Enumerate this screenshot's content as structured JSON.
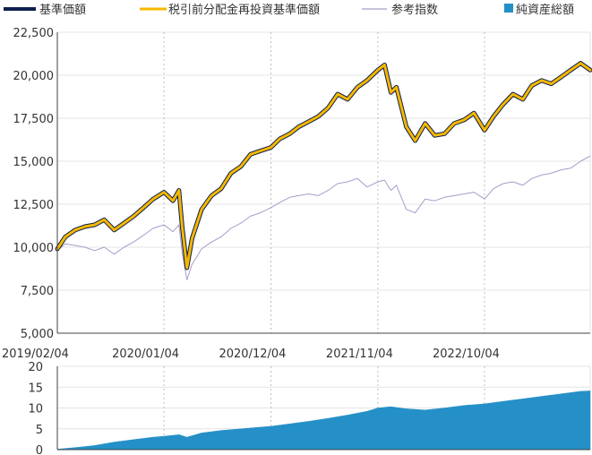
{
  "legend": {
    "items": [
      {
        "label": "基準価額",
        "color": "#0d1f4e",
        "swatch": "line"
      },
      {
        "label": "税引前分配金再投資基準価額",
        "color": "#f5b800",
        "swatch": "line"
      },
      {
        "label": "参考指数",
        "color": "#a89cc8",
        "swatch": "line"
      },
      {
        "label": "純資産総額",
        "color": "#2590c8",
        "swatch": "square"
      }
    ]
  },
  "chart_data": [
    {
      "type": "line",
      "x_ticks": [
        "2019/02/04",
        "2020/01/04",
        "2020/12/04",
        "2021/11/04",
        "2022/10/04"
      ],
      "x_range": [
        "2019/02/04",
        "2023/08/31"
      ],
      "ylim": [
        5000,
        22500
      ],
      "y_ticks": [
        "5,000",
        "7,500",
        "10,000",
        "12,500",
        "15,000",
        "17,500",
        "20,000",
        "22,500"
      ],
      "grid": "vertical-dotted",
      "series": [
        {
          "name": "税引前分配金再投資基準価額",
          "color": "#f5b800",
          "x": [
            "2019/02/04",
            "2019/03/01",
            "2019/04/01",
            "2019/05/01",
            "2019/06/01",
            "2019/07/01",
            "2019/08/01",
            "2019/09/01",
            "2019/10/01",
            "2019/11/01",
            "2019/12/01",
            "2020/01/04",
            "2020/02/01",
            "2020/02/20",
            "2020/03/01",
            "2020/03/16",
            "2020/04/01",
            "2020/05/01",
            "2020/06/01",
            "2020/07/01",
            "2020/08/01",
            "2020/09/01",
            "2020/10/01",
            "2020/11/01",
            "2020/12/04",
            "2021/01/01",
            "2021/02/01",
            "2021/03/01",
            "2021/04/01",
            "2021/05/01",
            "2021/06/01",
            "2021/07/01",
            "2021/08/01",
            "2021/09/01",
            "2021/10/01",
            "2021/11/04",
            "2021/11/25",
            "2021/12/15",
            "2022/01/01",
            "2022/02/01",
            "2022/03/01",
            "2022/04/01",
            "2022/05/01",
            "2022/06/01",
            "2022/07/01",
            "2022/08/01",
            "2022/09/01",
            "2022/10/04",
            "2022/11/01",
            "2022/12/01",
            "2023/01/01",
            "2023/02/01",
            "2023/03/01",
            "2023/04/01",
            "2023/05/01",
            "2023/06/01",
            "2023/07/01",
            "2023/08/01",
            "2023/08/31"
          ],
          "values": [
            9900,
            10600,
            11000,
            11200,
            11300,
            11600,
            11000,
            11400,
            11800,
            12300,
            12800,
            13200,
            12700,
            13300,
            11200,
            8800,
            10500,
            12200,
            13000,
            13400,
            14300,
            14700,
            15400,
            15600,
            15800,
            16300,
            16600,
            17000,
            17300,
            17600,
            18100,
            18900,
            18600,
            19300,
            19700,
            20300,
            20600,
            19000,
            19300,
            17000,
            16200,
            17200,
            16500,
            16600,
            17200,
            17400,
            17800,
            16800,
            17600,
            18300,
            18900,
            18600,
            19400,
            19700,
            19500,
            19900,
            20300,
            20700,
            20300
          ]
        },
        {
          "name": "基準価額",
          "color": "#0d1f4e",
          "x": [
            "2019/02/04",
            "2019/03/01",
            "2019/04/01",
            "2019/05/01",
            "2019/06/01",
            "2019/07/01",
            "2019/08/01",
            "2019/09/01",
            "2019/10/01",
            "2019/11/01",
            "2019/12/01",
            "2020/01/04",
            "2020/02/01",
            "2020/02/20",
            "2020/03/01",
            "2020/03/16",
            "2020/04/01",
            "2020/05/01",
            "2020/06/01",
            "2020/07/01",
            "2020/08/01",
            "2020/09/01",
            "2020/10/01",
            "2020/11/01",
            "2020/12/04",
            "2021/01/01",
            "2021/02/01",
            "2021/03/01",
            "2021/04/01",
            "2021/05/01",
            "2021/06/01",
            "2021/07/01",
            "2021/08/01",
            "2021/09/01",
            "2021/10/01",
            "2021/11/04",
            "2021/11/25",
            "2021/12/15",
            "2022/01/01",
            "2022/02/01",
            "2022/03/01",
            "2022/04/01",
            "2022/05/01",
            "2022/06/01",
            "2022/07/01",
            "2022/08/01",
            "2022/09/01",
            "2022/10/04",
            "2022/11/01",
            "2022/12/01",
            "2023/01/01",
            "2023/02/01",
            "2023/03/01",
            "2023/04/01",
            "2023/05/01",
            "2023/06/01",
            "2023/07/01",
            "2023/08/01",
            "2023/08/31"
          ],
          "values": [
            9900,
            10600,
            11000,
            11200,
            11300,
            11600,
            11000,
            11400,
            11800,
            12300,
            12800,
            13200,
            12700,
            13300,
            11200,
            8800,
            10500,
            12200,
            13000,
            13400,
            14300,
            14700,
            15400,
            15600,
            15800,
            16300,
            16600,
            17000,
            17300,
            17600,
            18100,
            18900,
            18600,
            19300,
            19700,
            20300,
            20600,
            19000,
            19300,
            17000,
            16200,
            17200,
            16500,
            16600,
            17200,
            17400,
            17800,
            16800,
            17600,
            18300,
            18900,
            18600,
            19400,
            19700,
            19500,
            19900,
            20300,
            20700,
            20300
          ]
        },
        {
          "name": "参考指数",
          "color": "#a89cc8",
          "x": [
            "2019/02/04",
            "2019/03/01",
            "2019/04/01",
            "2019/05/01",
            "2019/06/01",
            "2019/07/01",
            "2019/08/01",
            "2019/09/01",
            "2019/10/01",
            "2019/11/01",
            "2019/12/01",
            "2020/01/04",
            "2020/02/01",
            "2020/02/20",
            "2020/03/01",
            "2020/03/16",
            "2020/04/01",
            "2020/05/01",
            "2020/06/01",
            "2020/07/01",
            "2020/08/01",
            "2020/09/01",
            "2020/10/01",
            "2020/11/01",
            "2020/12/04",
            "2021/01/01",
            "2021/02/01",
            "2021/03/01",
            "2021/04/01",
            "2021/05/01",
            "2021/06/01",
            "2021/07/01",
            "2021/08/01",
            "2021/09/01",
            "2021/10/01",
            "2021/11/04",
            "2021/11/25",
            "2021/12/15",
            "2022/01/01",
            "2022/02/01",
            "2022/03/01",
            "2022/04/01",
            "2022/05/01",
            "2022/06/01",
            "2022/07/01",
            "2022/08/01",
            "2022/09/01",
            "2022/10/04",
            "2022/11/01",
            "2022/12/01",
            "2023/01/01",
            "2023/02/01",
            "2023/03/01",
            "2023/04/01",
            "2023/05/01",
            "2023/06/01",
            "2023/07/01",
            "2023/08/01",
            "2023/08/31"
          ],
          "values": [
            9800,
            10200,
            10100,
            10000,
            9800,
            10000,
            9600,
            10000,
            10300,
            10700,
            11100,
            11300,
            10900,
            11300,
            9700,
            8100,
            9000,
            9900,
            10300,
            10600,
            11100,
            11400,
            11800,
            12000,
            12300,
            12600,
            12900,
            13000,
            13100,
            13000,
            13300,
            13700,
            13800,
            14000,
            13500,
            13800,
            13900,
            13300,
            13600,
            12200,
            12000,
            12800,
            12700,
            12900,
            13000,
            13100,
            13200,
            12800,
            13400,
            13700,
            13800,
            13600,
            14000,
            14200,
            14300,
            14500,
            14600,
            15000,
            15300
          ]
        }
      ]
    },
    {
      "type": "area",
      "ylim": [
        0,
        20
      ],
      "y_ticks": [
        "0",
        "5",
        "10",
        "15",
        "20"
      ],
      "series": [
        {
          "name": "純資産総額",
          "color": "#2590c8",
          "x": [
            "2019/02/04",
            "2019/04/01",
            "2019/06/01",
            "2019/08/01",
            "2019/10/01",
            "2019/12/01",
            "2020/01/04",
            "2020/02/20",
            "2020/03/16",
            "2020/05/01",
            "2020/07/01",
            "2020/09/01",
            "2020/11/01",
            "2020/12/04",
            "2021/02/01",
            "2021/04/01",
            "2021/06/01",
            "2021/08/01",
            "2021/10/01",
            "2021/11/04",
            "2021/12/15",
            "2022/02/01",
            "2022/04/01",
            "2022/06/01",
            "2022/08/01",
            "2022/10/04",
            "2022/12/01",
            "2023/02/01",
            "2023/04/01",
            "2023/06/01",
            "2023/08/01",
            "2023/08/31"
          ],
          "values": [
            0.1,
            0.5,
            1.0,
            1.8,
            2.4,
            3.0,
            3.2,
            3.6,
            3.0,
            4.0,
            4.6,
            5.0,
            5.4,
            5.6,
            6.2,
            6.8,
            7.5,
            8.3,
            9.2,
            10.0,
            10.3,
            9.8,
            9.5,
            10.0,
            10.6,
            11.0,
            11.6,
            12.2,
            12.8,
            13.4,
            14.0,
            14.1
          ]
        }
      ]
    }
  ]
}
